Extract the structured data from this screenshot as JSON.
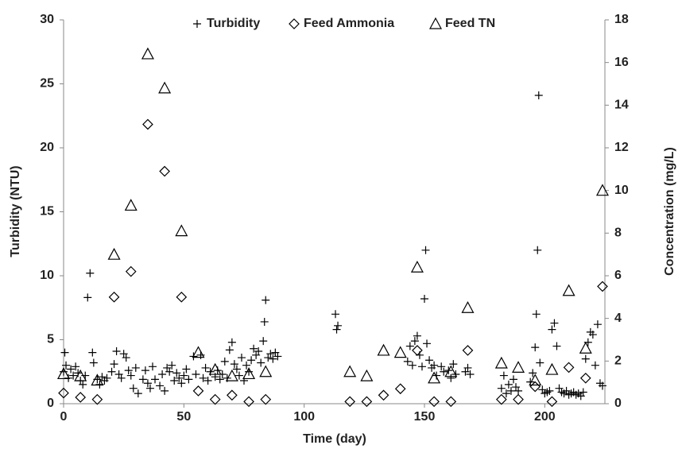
{
  "chart_data": {
    "type": "scatter",
    "xlabel": "Time (day)",
    "ylabel": "Turbidity (NTU)",
    "y2label": "Concentration (mg/L)",
    "xlim": [
      0,
      225
    ],
    "xticks": [
      0,
      50,
      100,
      150,
      200
    ],
    "ylim": [
      0,
      30
    ],
    "yticks": [
      0,
      5,
      10,
      15,
      20,
      25,
      30
    ],
    "y2lim": [
      0,
      18
    ],
    "y2ticks": [
      0,
      2,
      4,
      6,
      8,
      10,
      12,
      14,
      16,
      18
    ],
    "grid": false,
    "legend": "top",
    "series": [
      {
        "name": "Turbidity",
        "marker": "plus",
        "color": "#000000",
        "axis": "y",
        "x": [
          0,
          0.5,
          1,
          2,
          3,
          4,
          5,
          6,
          7,
          8,
          9,
          10,
          11,
          12,
          12.5,
          14,
          15,
          16,
          17,
          18,
          20,
          21,
          22,
          23,
          24,
          25,
          26,
          27,
          28,
          29,
          30,
          31,
          33,
          34,
          35,
          36,
          37,
          38,
          40,
          41,
          42,
          43,
          44,
          45,
          46,
          47,
          48,
          49,
          50,
          51,
          52,
          54,
          55,
          57,
          58,
          59,
          60,
          61,
          63,
          64,
          65,
          66,
          67,
          68,
          69,
          70,
          71,
          72,
          73,
          74,
          75,
          76,
          77,
          78,
          79,
          80,
          81,
          82,
          83,
          83.5,
          84,
          85,
          86,
          87,
          88,
          89,
          113,
          113.5,
          114,
          143,
          144,
          145,
          146,
          147,
          148,
          149,
          150,
          150.5,
          151,
          152,
          153,
          154,
          155,
          157,
          158,
          160,
          161,
          162,
          163,
          167,
          168,
          169,
          182,
          183,
          184,
          185,
          186,
          187,
          188,
          189,
          194,
          195,
          196,
          196.5,
          197,
          197.5,
          198,
          199,
          200,
          201,
          202,
          203,
          204,
          205,
          206,
          207,
          208,
          209,
          210,
          211,
          212,
          213,
          214,
          215,
          216,
          217,
          218,
          219,
          220,
          221,
          222,
          223,
          224
        ],
        "values": [
          2.5,
          4.0,
          3.0,
          2.0,
          2.7,
          2.2,
          2.9,
          2.4,
          1.8,
          1.5,
          2.2,
          8.3,
          10.2,
          4.0,
          3.2,
          1.9,
          1.5,
          2.1,
          1.8,
          2.0,
          2.5,
          3.1,
          4.1,
          2.3,
          2.0,
          3.9,
          3.6,
          2.6,
          2.2,
          1.2,
          2.8,
          0.8,
          1.9,
          2.6,
          1.6,
          1.2,
          2.9,
          1.9,
          1.4,
          2.3,
          1.0,
          2.8,
          2.5,
          3.0,
          1.8,
          2.4,
          2.0,
          1.6,
          2.2,
          2.7,
          1.9,
          3.7,
          2.3,
          3.8,
          2.0,
          2.8,
          1.8,
          2.5,
          2.1,
          2.6,
          1.9,
          2.3,
          3.3,
          2.0,
          4.2,
          4.8,
          3.1,
          2.7,
          2.2,
          3.6,
          1.8,
          3.0,
          2.5,
          3.4,
          4.3,
          3.8,
          4.1,
          3.2,
          4.9,
          6.4,
          8.1,
          3.6,
          3.9,
          3.5,
          4.0,
          3.7,
          7.0,
          5.8,
          6.1,
          3.3,
          4.5,
          3.0,
          4.9,
          5.3,
          3.8,
          2.9,
          8.2,
          12.0,
          4.7,
          3.4,
          2.8,
          3.0,
          2.2,
          2.9,
          2.5,
          2.6,
          2.0,
          3.1,
          2.3,
          2.5,
          2.8,
          2.3,
          1.2,
          2.2,
          0.8,
          1.5,
          1.0,
          1.9,
          1.3,
          1.0,
          1.7,
          2.4,
          4.4,
          7.0,
          12.0,
          24.1,
          3.2,
          1.1,
          0.8,
          0.9,
          1.0,
          5.8,
          6.3,
          4.5,
          1.2,
          0.9,
          0.8,
          1.0,
          0.7,
          0.8,
          0.9,
          0.7,
          0.8,
          0.6,
          0.9,
          3.5,
          4.8,
          5.6,
          5.4,
          3.0,
          6.2,
          1.6,
          1.4
        ]
      },
      {
        "name": "Feed Ammonia",
        "marker": "diamond",
        "color": "#000000",
        "axis": "y2",
        "x": [
          0,
          7,
          14,
          21,
          28,
          35,
          42,
          49,
          56,
          63,
          70,
          77,
          84,
          119,
          126,
          133,
          140,
          147,
          154,
          161,
          168,
          182,
          189,
          196,
          203,
          210,
          217,
          224
        ],
        "values": [
          0.5,
          0.3,
          0.2,
          5.0,
          6.2,
          13.1,
          10.9,
          5.0,
          0.6,
          0.2,
          0.4,
          0.1,
          0.2,
          0.1,
          0.1,
          0.4,
          0.7,
          2.5,
          0.1,
          0.1,
          2.5,
          0.2,
          0.2,
          0.8,
          0.1,
          1.7,
          1.2,
          5.5
        ]
      },
      {
        "name": "Feed TN",
        "marker": "triangle",
        "color": "#000000",
        "axis": "y2",
        "x": [
          0,
          7,
          14,
          21,
          28,
          35,
          42,
          49,
          56,
          63,
          70,
          77,
          84,
          119,
          126,
          133,
          140,
          147,
          154,
          161,
          168,
          182,
          189,
          196,
          203,
          210,
          217,
          224
        ],
        "values": [
          1.4,
          1.3,
          1.1,
          7.0,
          9.3,
          16.4,
          14.8,
          8.1,
          2.4,
          1.6,
          1.3,
          1.4,
          1.5,
          1.5,
          1.3,
          2.5,
          2.4,
          6.4,
          1.2,
          1.5,
          4.5,
          1.9,
          1.7,
          1.1,
          1.6,
          5.3,
          2.6,
          10.0
        ]
      }
    ]
  }
}
